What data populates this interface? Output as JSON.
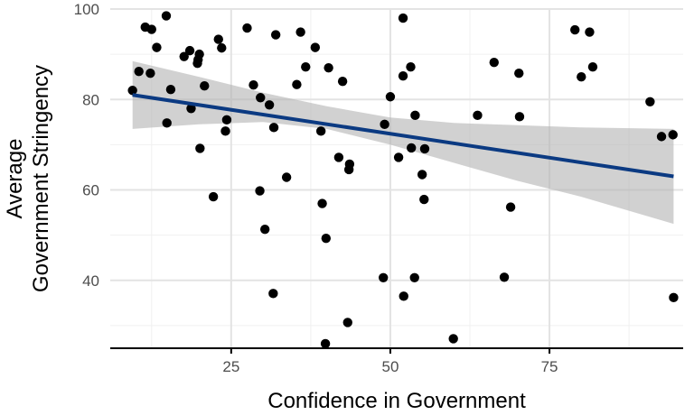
{
  "chart_data": {
    "type": "scatter",
    "xlabel": "Confidence in Government",
    "ylabel_lines": [
      "Average",
      "Government Stringency"
    ],
    "xlim": [
      6,
      96
    ],
    "ylim": [
      25,
      100
    ],
    "x_ticks": [
      25,
      50,
      75
    ],
    "y_ticks": [
      40,
      60,
      80,
      100
    ],
    "x_minor": [
      12.5,
      37.5,
      62.5,
      87.5
    ],
    "y_minor": [
      30,
      50,
      70,
      90
    ],
    "grid": true,
    "points": [
      {
        "x": 9.5,
        "y": 82.0
      },
      {
        "x": 10.5,
        "y": 86.2
      },
      {
        "x": 11.5,
        "y": 96.0
      },
      {
        "x": 12.5,
        "y": 95.5
      },
      {
        "x": 12.3,
        "y": 85.8
      },
      {
        "x": 13.3,
        "y": 91.5
      },
      {
        "x": 14.8,
        "y": 98.5
      },
      {
        "x": 14.9,
        "y": 74.8
      },
      {
        "x": 15.5,
        "y": 82.2
      },
      {
        "x": 17.6,
        "y": 89.5
      },
      {
        "x": 18.5,
        "y": 90.8
      },
      {
        "x": 18.7,
        "y": 78.0
      },
      {
        "x": 19.7,
        "y": 88.0
      },
      {
        "x": 19.8,
        "y": 88.8
      },
      {
        "x": 20.0,
        "y": 90.0
      },
      {
        "x": 20.1,
        "y": 69.2
      },
      {
        "x": 20.8,
        "y": 83.0
      },
      {
        "x": 22.2,
        "y": 58.5
      },
      {
        "x": 23.0,
        "y": 93.3
      },
      {
        "x": 23.5,
        "y": 91.4
      },
      {
        "x": 24.1,
        "y": 73.0
      },
      {
        "x": 24.3,
        "y": 75.5
      },
      {
        "x": 27.5,
        "y": 95.8
      },
      {
        "x": 28.5,
        "y": 83.2
      },
      {
        "x": 29.5,
        "y": 59.8
      },
      {
        "x": 29.6,
        "y": 80.4
      },
      {
        "x": 30.3,
        "y": 51.3
      },
      {
        "x": 31.0,
        "y": 78.8
      },
      {
        "x": 31.7,
        "y": 73.8
      },
      {
        "x": 31.6,
        "y": 37.1
      },
      {
        "x": 32.0,
        "y": 94.3
      },
      {
        "x": 33.7,
        "y": 62.8
      },
      {
        "x": 35.3,
        "y": 83.3
      },
      {
        "x": 35.9,
        "y": 94.9
      },
      {
        "x": 36.7,
        "y": 87.2
      },
      {
        "x": 38.2,
        "y": 91.5
      },
      {
        "x": 39.1,
        "y": 73.0
      },
      {
        "x": 39.3,
        "y": 57.0
      },
      {
        "x": 39.8,
        "y": 26.0
      },
      {
        "x": 39.9,
        "y": 49.3
      },
      {
        "x": 40.3,
        "y": 87.0
      },
      {
        "x": 41.9,
        "y": 67.2
      },
      {
        "x": 42.5,
        "y": 84.0
      },
      {
        "x": 43.3,
        "y": 30.7
      },
      {
        "x": 43.6,
        "y": 65.7
      },
      {
        "x": 43.5,
        "y": 64.5
      },
      {
        "x": 48.9,
        "y": 40.6
      },
      {
        "x": 49.1,
        "y": 74.5
      },
      {
        "x": 50.0,
        "y": 80.6
      },
      {
        "x": 51.3,
        "y": 67.2
      },
      {
        "x": 52.0,
        "y": 98.0
      },
      {
        "x": 52.0,
        "y": 85.2
      },
      {
        "x": 52.1,
        "y": 36.5
      },
      {
        "x": 53.2,
        "y": 87.2
      },
      {
        "x": 53.3,
        "y": 69.3
      },
      {
        "x": 53.9,
        "y": 76.5
      },
      {
        "x": 53.8,
        "y": 40.6
      },
      {
        "x": 55.0,
        "y": 63.4
      },
      {
        "x": 55.4,
        "y": 69.1
      },
      {
        "x": 55.3,
        "y": 57.9
      },
      {
        "x": 59.9,
        "y": 27.1
      },
      {
        "x": 63.7,
        "y": 76.5
      },
      {
        "x": 66.3,
        "y": 88.2
      },
      {
        "x": 67.9,
        "y": 40.7
      },
      {
        "x": 68.9,
        "y": 56.2
      },
      {
        "x": 70.2,
        "y": 85.8
      },
      {
        "x": 70.3,
        "y": 76.2
      },
      {
        "x": 79.0,
        "y": 95.4
      },
      {
        "x": 80.0,
        "y": 85.0
      },
      {
        "x": 81.3,
        "y": 94.9
      },
      {
        "x": 81.8,
        "y": 87.2
      },
      {
        "x": 90.8,
        "y": 79.5
      },
      {
        "x": 92.6,
        "y": 71.8
      },
      {
        "x": 94.4,
        "y": 72.2
      },
      {
        "x": 94.5,
        "y": 36.2
      }
    ],
    "trend": {
      "x": [
        9.5,
        94.5
      ],
      "y": [
        81.0,
        63.0
      ]
    },
    "confidence_band": {
      "x": [
        9.5,
        20,
        30,
        40,
        50,
        60,
        70,
        80,
        94.5
      ],
      "upper": [
        88.5,
        85.0,
        81.5,
        78.5,
        76.0,
        74.8,
        74.3,
        73.8,
        73.5
      ],
      "lower": [
        73.5,
        74.5,
        75.0,
        73.5,
        70.0,
        66.0,
        62.0,
        58.5,
        52.5
      ]
    },
    "colors": {
      "point": "#000000",
      "trend": "#0b3a82",
      "band": "#b3b3b3",
      "grid_major": "#e3e3e3",
      "grid_minor": "#f0f0f0",
      "axis": "#000000",
      "tick_text": "#4d4d4d"
    }
  }
}
